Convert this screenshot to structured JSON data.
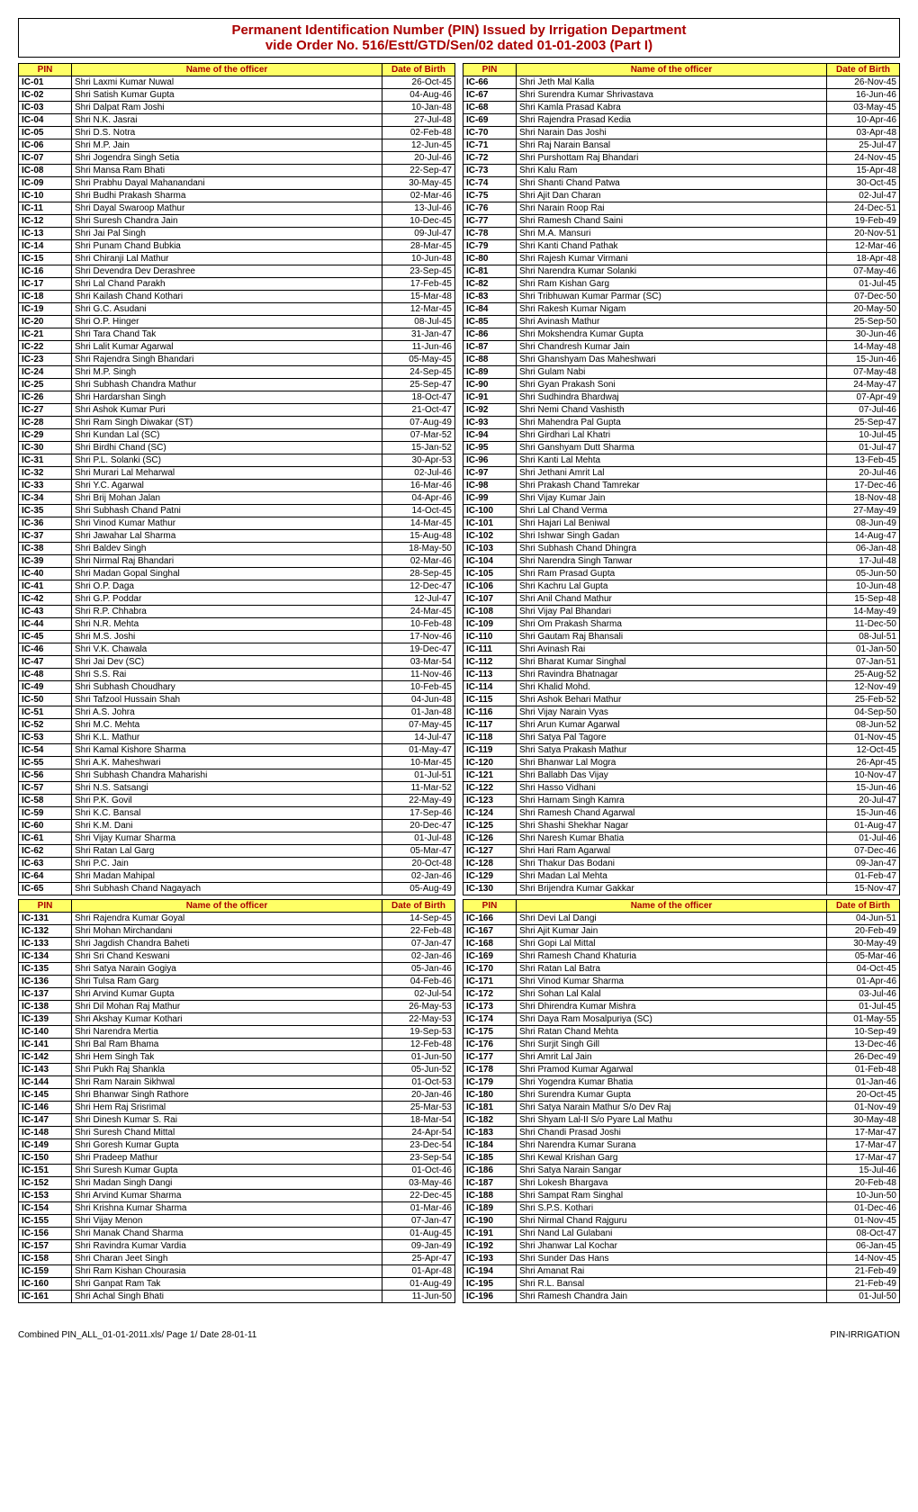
{
  "title_line1": "Permanent Identification Number (PIN) Issued by Irrigation Department",
  "title_line2": "vide Order No. 516/Estt/GTD/Sen/02 dated 01-01-2003 (Part I)",
  "headers": {
    "pin": "PIN",
    "name": "Name of the officer",
    "dob": "Date of Birth"
  },
  "footer_left": "Combined PIN_ALL_01-01-2011.xls/ Page 1/ Date 28-01-11",
  "footer_right": "PIN-IRRIGATION",
  "q1": [
    [
      "IC-01",
      "Shri Laxmi Kumar Nuwal",
      "26-Oct-45"
    ],
    [
      "IC-02",
      "Shri Satish Kumar Gupta",
      "04-Aug-46"
    ],
    [
      "IC-03",
      "Shri Dalpat Ram Joshi",
      "10-Jan-48"
    ],
    [
      "IC-04",
      "Shri N.K. Jasrai",
      "27-Jul-48"
    ],
    [
      "IC-05",
      "Shri D.S. Notra",
      "02-Feb-48"
    ],
    [
      "IC-06",
      "Shri M.P. Jain",
      "12-Jun-45"
    ],
    [
      "IC-07",
      "Shri Jogendra Singh Setia",
      "20-Jul-46"
    ],
    [
      "IC-08",
      "Shri Mansa Ram Bhati",
      "22-Sep-47"
    ],
    [
      "IC-09",
      "Shri Prabhu Dayal Mahanandani",
      "30-May-45"
    ],
    [
      "IC-10",
      "Shri Budhi Prakash Sharma",
      "02-Mar-46"
    ],
    [
      "IC-11",
      "Shri Dayal Swaroop Mathur",
      "13-Jul-46"
    ],
    [
      "IC-12",
      "Shri Suresh Chandra Jain",
      "10-Dec-45"
    ],
    [
      "IC-13",
      "Shri Jai Pal Singh",
      "09-Jul-47"
    ],
    [
      "IC-14",
      "Shri Punam Chand Bubkia",
      "28-Mar-45"
    ],
    [
      "IC-15",
      "Shri Chiranji Lal Mathur",
      "10-Jun-48"
    ],
    [
      "IC-16",
      "Shri Devendra Dev Derashree",
      "23-Sep-45"
    ],
    [
      "IC-17",
      "Shri Lal Chand Parakh",
      "17-Feb-45"
    ],
    [
      "IC-18",
      "Shri Kailash Chand Kothari",
      "15-Mar-48"
    ],
    [
      "IC-19",
      "Shri G.C. Asudani",
      "12-Mar-45"
    ],
    [
      "IC-20",
      "Shri O.P. Hinger",
      "08-Jul-45"
    ],
    [
      "IC-21",
      "Shri Tara Chand Tak",
      "31-Jan-47"
    ],
    [
      "IC-22",
      "Shri Lalit Kumar Agarwal",
      "11-Jun-46"
    ],
    [
      "IC-23",
      "Shri Rajendra Singh Bhandari",
      "05-May-45"
    ],
    [
      "IC-24",
      "Shri M.P. Singh",
      "24-Sep-45"
    ],
    [
      "IC-25",
      "Shri Subhash Chandra Mathur",
      "25-Sep-47"
    ],
    [
      "IC-26",
      "Shri Hardarshan Singh",
      "18-Oct-47"
    ],
    [
      "IC-27",
      "Shri Ashok Kumar Puri",
      "21-Oct-47"
    ],
    [
      "IC-28",
      "Shri Ram Singh Diwakar (ST)",
      "07-Aug-49"
    ],
    [
      "IC-29",
      "Shri Kundan Lal (SC)",
      "07-Mar-52"
    ],
    [
      "IC-30",
      "Shri Birdhi Chand (SC)",
      "15-Jan-52"
    ],
    [
      "IC-31",
      "Shri P.L. Solanki (SC)",
      "30-Apr-53"
    ],
    [
      "IC-32",
      "Shri Murari Lal Meharwal",
      "02-Jul-46"
    ],
    [
      "IC-33",
      "Shri Y.C. Agarwal",
      "16-Mar-46"
    ],
    [
      "IC-34",
      "Shri Brij Mohan Jalan",
      "04-Apr-46"
    ],
    [
      "IC-35",
      "Shri Subhash Chand Patni",
      "14-Oct-45"
    ],
    [
      "IC-36",
      "Shri Vinod Kumar Mathur",
      "14-Mar-45"
    ],
    [
      "IC-37",
      "Shri Jawahar Lal Sharma",
      "15-Aug-48"
    ],
    [
      "IC-38",
      "Shri Baldev Singh",
      "18-May-50"
    ],
    [
      "IC-39",
      "Shri Nirmal Raj Bhandari",
      "02-Mar-46"
    ],
    [
      "IC-40",
      "Shri Madan Gopal Singhal",
      "28-Sep-45"
    ],
    [
      "IC-41",
      "Shri O.P. Daga",
      "12-Dec-47"
    ],
    [
      "IC-42",
      "Shri G.P. Poddar",
      "12-Jul-47"
    ],
    [
      "IC-43",
      "Shri R.P. Chhabra",
      "24-Mar-45"
    ],
    [
      "IC-44",
      "Shri N.R. Mehta",
      "10-Feb-48"
    ],
    [
      "IC-45",
      "Shri M.S. Joshi",
      "17-Nov-46"
    ],
    [
      "IC-46",
      "Shri V.K. Chawala",
      "19-Dec-47"
    ],
    [
      "IC-47",
      "Shri Jai Dev (SC)",
      "03-Mar-54"
    ],
    [
      "IC-48",
      "Shri S.S. Rai",
      "11-Nov-46"
    ],
    [
      "IC-49",
      "Shri Subhash Choudhary",
      "10-Feb-45"
    ],
    [
      "IC-50",
      "Shri Tafzool Hussain Shah",
      "04-Jun-48"
    ],
    [
      "IC-51",
      "Shri A.S. Johra",
      "01-Jan-48"
    ],
    [
      "IC-52",
      "Shri M.C. Mehta",
      "07-May-45"
    ],
    [
      "IC-53",
      "Shri K.L. Mathur",
      "14-Jul-47"
    ],
    [
      "IC-54",
      "Shri Kamal Kishore Sharma",
      "01-May-47"
    ],
    [
      "IC-55",
      "Shri A.K. Maheshwari",
      "10-Mar-45"
    ],
    [
      "IC-56",
      "Shri Subhash Chandra Maharishi",
      "01-Jul-51"
    ],
    [
      "IC-57",
      "Shri N.S. Satsangi",
      "11-Mar-52"
    ],
    [
      "IC-58",
      "Shri P.K. Govil",
      "22-May-49"
    ],
    [
      "IC-59",
      "Shri K.C. Bansal",
      "17-Sep-46"
    ],
    [
      "IC-60",
      "Shri K.M. Dani",
      "20-Dec-47"
    ],
    [
      "IC-61",
      "Shri Vijay Kumar Sharma",
      "01-Jul-48"
    ],
    [
      "IC-62",
      "Shri Ratan Lal Garg",
      "05-Mar-47"
    ],
    [
      "IC-63",
      "Shri P.C. Jain",
      "20-Oct-48"
    ],
    [
      "IC-64",
      "Shri Madan Mahipal",
      "02-Jan-46"
    ],
    [
      "IC-65",
      "Shri Subhash Chand Nagayach",
      "05-Aug-49"
    ]
  ],
  "q2": [
    [
      "IC-66",
      "Shri Jeth Mal Kalla",
      "26-Nov-45"
    ],
    [
      "IC-67",
      "Shri Surendra Kumar Shrivastava",
      "16-Jun-46"
    ],
    [
      "IC-68",
      "Shri Kamla Prasad Kabra",
      "03-May-45"
    ],
    [
      "IC-69",
      "Shri Rajendra Prasad Kedia",
      "10-Apr-46"
    ],
    [
      "IC-70",
      "Shri Narain Das Joshi",
      "03-Apr-48"
    ],
    [
      "IC-71",
      "Shri Raj Narain Bansal",
      "25-Jul-47"
    ],
    [
      "IC-72",
      "Shri Purshottam Raj Bhandari",
      "24-Nov-45"
    ],
    [
      "IC-73",
      "Shri Kalu Ram",
      "15-Apr-48"
    ],
    [
      "IC-74",
      "Shri Shanti Chand Patwa",
      "30-Oct-45"
    ],
    [
      "IC-75",
      "Shri Ajit Dan Charan",
      "02-Jul-47"
    ],
    [
      "IC-76",
      "Shri Narain Roop Rai",
      "24-Dec-51"
    ],
    [
      "IC-77",
      "Shri Ramesh Chand Saini",
      "19-Feb-49"
    ],
    [
      "IC-78",
      "Shri M.A. Mansuri",
      "20-Nov-51"
    ],
    [
      "IC-79",
      "Shri Kanti Chand Pathak",
      "12-Mar-46"
    ],
    [
      "IC-80",
      "Shri Rajesh Kumar Virmani",
      "18-Apr-48"
    ],
    [
      "IC-81",
      "Shri Narendra Kumar Solanki",
      "07-May-46"
    ],
    [
      "IC-82",
      "Shri Ram Kishan Garg",
      "01-Jul-45"
    ],
    [
      "IC-83",
      "Shri Tribhuwan Kumar Parmar (SC)",
      "07-Dec-50"
    ],
    [
      "IC-84",
      "Shri Rakesh Kumar Nigam",
      "20-May-50"
    ],
    [
      "IC-85",
      "Shri Avinash Mathur",
      "25-Sep-50"
    ],
    [
      "IC-86",
      "Shri Mokshendra Kumar Gupta",
      "30-Jun-46"
    ],
    [
      "IC-87",
      "Shri Chandresh Kumar Jain",
      "14-May-48"
    ],
    [
      "IC-88",
      "Shri Ghanshyam Das Maheshwari",
      "15-Jun-46"
    ],
    [
      "IC-89",
      "Shri Gulam Nabi",
      "07-May-48"
    ],
    [
      "IC-90",
      "Shri Gyan Prakash Soni",
      "24-May-47"
    ],
    [
      "IC-91",
      "Shri Sudhindra Bhardwaj",
      "07-Apr-49"
    ],
    [
      "IC-92",
      "Shri Nemi Chand Vashisth",
      "07-Jul-46"
    ],
    [
      "IC-93",
      "Shri Mahendra Pal Gupta",
      "25-Sep-47"
    ],
    [
      "IC-94",
      "Shri Girdhari Lal Khatri",
      "10-Jul-45"
    ],
    [
      "IC-95",
      "Shri Ganshyam Dutt Sharma",
      "01-Jul-47"
    ],
    [
      "IC-96",
      "Shri Kanti Lal Mehta",
      "13-Feb-45"
    ],
    [
      "IC-97",
      "Shri Jethani Amrit Lal",
      "20-Jul-46"
    ],
    [
      "IC-98",
      "Shri Prakash Chand Tamrekar",
      "17-Dec-46"
    ],
    [
      "IC-99",
      "Shri Vijay Kumar Jain",
      "18-Nov-48"
    ],
    [
      "IC-100",
      "Shri Lal Chand Verma",
      "27-May-49"
    ],
    [
      "IC-101",
      "Shri Hajari Lal Beniwal",
      "08-Jun-49"
    ],
    [
      "IC-102",
      "Shri Ishwar Singh Gadan",
      "14-Aug-47"
    ],
    [
      "IC-103",
      "Shri Subhash Chand Dhingra",
      "06-Jan-48"
    ],
    [
      "IC-104",
      "Shri Narendra Singh Tanwar",
      "17-Jul-48"
    ],
    [
      "IC-105",
      "Shri Ram Prasad Gupta",
      "05-Jun-50"
    ],
    [
      "IC-106",
      "Shri Kachru Lal Gupta",
      "10-Jun-48"
    ],
    [
      "IC-107",
      "Shri Anil Chand Mathur",
      "15-Sep-48"
    ],
    [
      "IC-108",
      "Shri Vijay Pal Bhandari",
      "14-May-49"
    ],
    [
      "IC-109",
      "Shri Om Prakash Sharma",
      "11-Dec-50"
    ],
    [
      "IC-110",
      "Shri Gautam Raj Bhansali",
      "08-Jul-51"
    ],
    [
      "IC-111",
      "Shri Avinash Rai",
      "01-Jan-50"
    ],
    [
      "IC-112",
      "Shri Bharat Kumar Singhal",
      "07-Jan-51"
    ],
    [
      "IC-113",
      "Shri Ravindra Bhatnagar",
      "25-Aug-52"
    ],
    [
      "IC-114",
      "Shri Khalid Mohd.",
      "12-Nov-49"
    ],
    [
      "IC-115",
      "Shri Ashok Behari Mathur",
      "25-Feb-52"
    ],
    [
      "IC-116",
      "Shri Vijay Narain Vyas",
      "04-Sep-50"
    ],
    [
      "IC-117",
      "Shri Arun Kumar Agarwal",
      "08-Jun-52"
    ],
    [
      "IC-118",
      "Shri Satya Pal Tagore",
      "01-Nov-45"
    ],
    [
      "IC-119",
      "Shri Satya Prakash Mathur",
      "12-Oct-45"
    ],
    [
      "IC-120",
      "Shri Bhanwar Lal Mogra",
      "26-Apr-45"
    ],
    [
      "IC-121",
      "Shri Ballabh Das Vijay",
      "10-Nov-47"
    ],
    [
      "IC-122",
      "Shri Hasso Vidhani",
      "15-Jun-46"
    ],
    [
      "IC-123",
      "Shri Harnam Singh Kamra",
      "20-Jul-47"
    ],
    [
      "IC-124",
      "Shri Ramesh Chand Agarwal",
      "15-Jun-46"
    ],
    [
      "IC-125",
      "Shri Shashi Shekhar Nagar",
      "01-Aug-47"
    ],
    [
      "IC-126",
      "Shri Naresh Kumar Bhatia",
      "01-Jul-46"
    ],
    [
      "IC-127",
      "Shri Hari Ram Agarwal",
      "07-Dec-46"
    ],
    [
      "IC-128",
      "Shri Thakur Das Bodani",
      "09-Jan-47"
    ],
    [
      "IC-129",
      "Shri Madan Lal Mehta",
      "01-Feb-47"
    ],
    [
      "IC-130",
      "Shri Brijendra Kumar Gakkar",
      "15-Nov-47"
    ]
  ],
  "q3": [
    [
      "IC-131",
      "Shri Rajendra Kumar Goyal",
      "14-Sep-45"
    ],
    [
      "IC-132",
      "Shri Mohan Mirchandani",
      "22-Feb-48"
    ],
    [
      "IC-133",
      "Shri Jagdish Chandra Baheti",
      "07-Jan-47"
    ],
    [
      "IC-134",
      "Shri Sri Chand Keswani",
      "02-Jan-46"
    ],
    [
      "IC-135",
      "Shri Satya Narain Gogiya",
      "05-Jan-46"
    ],
    [
      "IC-136",
      "Shri Tulsa Ram Garg",
      "04-Feb-46"
    ],
    [
      "IC-137",
      "Shri Arvind Kumar Gupta",
      "02-Jul-54"
    ],
    [
      "IC-138",
      "Shri Dil Mohan Raj Mathur",
      "26-May-53"
    ],
    [
      "IC-139",
      "Shri Akshay Kumar Kothari",
      "22-May-53"
    ],
    [
      "IC-140",
      "Shri Narendra Mertia",
      "19-Sep-53"
    ],
    [
      "IC-141",
      "Shri Bal Ram Bhama",
      "12-Feb-48"
    ],
    [
      "IC-142",
      "Shri Hem Singh Tak",
      "01-Jun-50"
    ],
    [
      "IC-143",
      "Shri Pukh Raj Shankla",
      "05-Jun-52"
    ],
    [
      "IC-144",
      "Shri Ram Narain Sikhwal",
      "01-Oct-53"
    ],
    [
      "IC-145",
      "Shri Bhanwar Singh Rathore",
      "20-Jan-46"
    ],
    [
      "IC-146",
      "Shri Hem Raj Srisrimal",
      "25-Mar-53"
    ],
    [
      "IC-147",
      "Shri Dinesh Kumar S. Rai",
      "18-Mar-54"
    ],
    [
      "IC-148",
      "Shri Suresh Chand Mittal",
      "24-Apr-54"
    ],
    [
      "IC-149",
      "Shri Goresh Kumar Gupta",
      "23-Dec-54"
    ],
    [
      "IC-150",
      "Shri Pradeep Mathur",
      "23-Sep-54"
    ],
    [
      "IC-151",
      "Shri Suresh Kumar Gupta",
      "01-Oct-46"
    ],
    [
      "IC-152",
      "Shri Madan Singh Dangi",
      "03-May-46"
    ],
    [
      "IC-153",
      "Shri Arvind Kumar Sharma",
      "22-Dec-45"
    ],
    [
      "IC-154",
      "Shri Krishna Kumar Sharma",
      "01-Mar-46"
    ],
    [
      "IC-155",
      "Shri Vijay Menon",
      "07-Jan-47"
    ],
    [
      "IC-156",
      "Shri Manak Chand Sharma",
      "01-Aug-45"
    ],
    [
      "IC-157",
      "Shri Ravindra Kumar Vardia",
      "09-Jan-49"
    ],
    [
      "IC-158",
      "Shri Charan Jeet Singh",
      "25-Apr-47"
    ],
    [
      "IC-159",
      "Shri Ram Kishan Chourasia",
      "01-Apr-48"
    ],
    [
      "IC-160",
      "Shri Ganpat Ram Tak",
      "01-Aug-49"
    ],
    [
      "IC-161",
      "Shri Achal Singh Bhati",
      "11-Jun-50"
    ]
  ],
  "q4": [
    [
      "IC-166",
      "Shri Devi Lal Dangi",
      "04-Jun-51"
    ],
    [
      "IC-167",
      "Shri Ajit Kumar Jain",
      "20-Feb-49"
    ],
    [
      "IC-168",
      "Shri Gopi Lal Mittal",
      "30-May-49"
    ],
    [
      "IC-169",
      "Shri Ramesh Chand Khaturia",
      "05-Mar-46"
    ],
    [
      "IC-170",
      "Shri Ratan Lal Batra",
      "04-Oct-45"
    ],
    [
      "IC-171",
      "Shri Vinod Kumar Sharma",
      "01-Apr-46"
    ],
    [
      "IC-172",
      "Shri Sohan Lal Kalal",
      "03-Jul-46"
    ],
    [
      "IC-173",
      "Shri Dhirendra Kumar Mishra",
      "01-Jul-45"
    ],
    [
      "IC-174",
      "Shri Daya Ram Mosalpuriya (SC)",
      "01-May-55"
    ],
    [
      "IC-175",
      "Shri Ratan Chand Mehta",
      "10-Sep-49"
    ],
    [
      "IC-176",
      "Shri Surjit Singh Gill",
      "13-Dec-46"
    ],
    [
      "IC-177",
      "Shri Amrit Lal Jain",
      "26-Dec-49"
    ],
    [
      "IC-178",
      "Shri Pramod Kumar Agarwal",
      "01-Feb-48"
    ],
    [
      "IC-179",
      "Shri Yogendra Kumar Bhatia",
      "01-Jan-46"
    ],
    [
      "IC-180",
      "Shri Surendra Kumar Gupta",
      "20-Oct-45"
    ],
    [
      "IC-181",
      "Shri Satya Narain Mathur S/o Dev Raj",
      "01-Nov-49"
    ],
    [
      "IC-182",
      "Shri Shyam Lal-II S/o Pyare Lal Mathu",
      "30-May-48"
    ],
    [
      "IC-183",
      "Shri Chandi Prasad Joshi",
      "17-Mar-47"
    ],
    [
      "IC-184",
      "Shri Narendra Kumar Surana",
      "17-Mar-47"
    ],
    [
      "IC-185",
      "Shri Kewal Krishan Garg",
      "17-Mar-47"
    ],
    [
      "IC-186",
      "Shri Satya Narain Sangar",
      "15-Jul-46"
    ],
    [
      "IC-187",
      "Shri Lokesh Bhargava",
      "20-Feb-48"
    ],
    [
      "IC-188",
      "Shri Sampat Ram Singhal",
      "10-Jun-50"
    ],
    [
      "IC-189",
      "Shri S.P.S. Kothari",
      "01-Dec-46"
    ],
    [
      "IC-190",
      "Shri Nirmal Chand Rajguru",
      "01-Nov-45"
    ],
    [
      "IC-191",
      "Shri Nand Lal Gulabani",
      "08-Oct-47"
    ],
    [
      "IC-192",
      "Shri Jhanwar Lal Kochar",
      "06-Jan-45"
    ],
    [
      "IC-193",
      "Shri Sunder Das Hans",
      "14-Nov-45"
    ],
    [
      "IC-194",
      "Shri Amanat Rai",
      "21-Feb-49"
    ],
    [
      "IC-195",
      "Shri R.L. Bansal",
      "21-Feb-49"
    ],
    [
      "IC-196",
      "Shri Ramesh Chandra Jain",
      "01-Jul-50"
    ]
  ]
}
